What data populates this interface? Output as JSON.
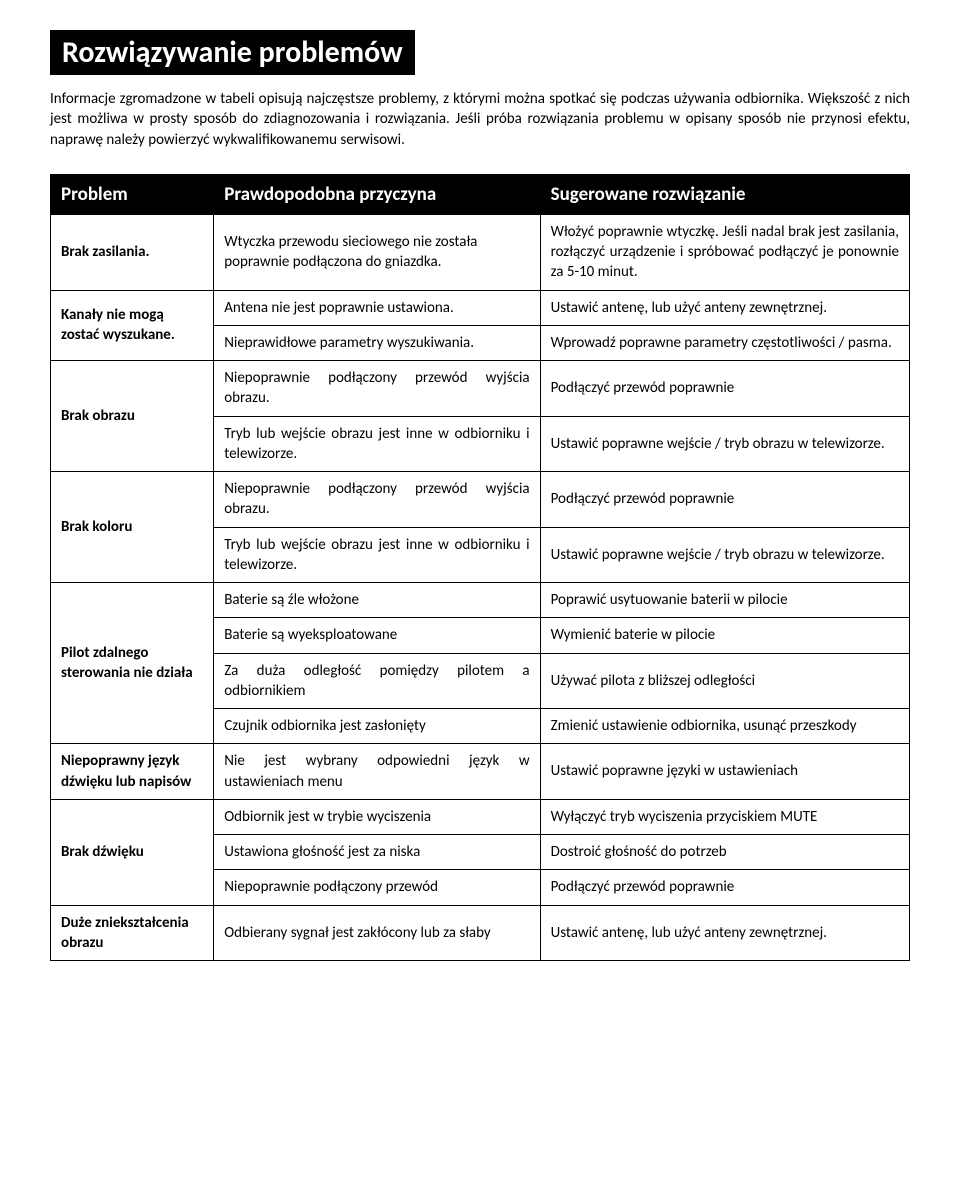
{
  "title": "Rozwiązywanie problemów",
  "intro": "Informacje zgromadzone w tabeli opisują najczęstsze problemy, z którymi można spotkać się podczas używania odbiornika. Większość z nich jest możliwa w prosty sposób do zdiagnozowania i rozwiązania. Jeśli próba rozwiązania problemu w opisany sposób nie przynosi efektu, naprawę należy powierzyć wykwalifikowanemu serwisowi.",
  "headers": {
    "problem": "Problem",
    "cause": "Prawdopodobna przyczyna",
    "solution": "Sugerowane rozwiązanie"
  },
  "rows": {
    "r1": {
      "problem": "Brak zasilania.",
      "cause": "Wtyczka przewodu sieciowego nie została poprawnie podłączona do gniazdka.",
      "solution": "Włożyć poprawnie wtyczkę. Jeśli nadal brak jest zasilania, rozłączyć urządzenie i spróbować podłączyć je ponownie za 5-10 minut."
    },
    "r2a": {
      "problem": "Kanały nie mogą zostać wyszukane.",
      "cause": "Antena nie jest poprawnie ustawiona.",
      "solution": "Ustawić antenę, lub użyć anteny zewnętrznej."
    },
    "r2b": {
      "cause": "Nieprawidłowe parametry wyszukiwania.",
      "solution": "Wprowadź poprawne parametry częstotliwości / pasma."
    },
    "r3a": {
      "problem": "Brak obrazu",
      "cause": "Niepoprawnie podłączony przewód wyjścia obrazu.",
      "solution": "Podłączyć przewód poprawnie"
    },
    "r3b": {
      "cause": "Tryb lub wejście obrazu jest inne w odbiorniku i telewizorze.",
      "solution": "Ustawić poprawne wejście / tryb obrazu  w telewizorze."
    },
    "r4a": {
      "problem": "Brak koloru",
      "cause": "Niepoprawnie podłączony przewód wyjścia obrazu.",
      "solution": "Podłączyć przewód poprawnie"
    },
    "r4b": {
      "cause": "Tryb lub wejście obrazu jest inne w odbiorniku i telewizorze.",
      "solution": "Ustawić poprawne wejście / tryb obrazu  w telewizorze."
    },
    "r5a": {
      "problem": "Pilot zdalnego sterowania nie działa",
      "cause": "Baterie są źle włożone",
      "solution": "Poprawić usytuowanie baterii w pilocie"
    },
    "r5b": {
      "cause": "Baterie są wyeksploatowane",
      "solution": "Wymienić baterie w pilocie"
    },
    "r5c": {
      "cause": "Za duża odległość pomiędzy pilotem a odbiornikiem",
      "solution": "Używać pilota z bliższej odległości"
    },
    "r5d": {
      "cause": "Czujnik odbiornika jest zasłonięty",
      "solution": "Zmienić ustawienie odbiornika, usunąć przeszkody"
    },
    "r6": {
      "problem": "Niepoprawny język dźwięku lub napisów",
      "cause": "Nie jest wybrany odpowiedni język w ustawieniach menu",
      "solution": "Ustawić poprawne języki w ustawieniach"
    },
    "r7a": {
      "problem": "Brak dźwięku",
      "cause": "Odbiornik jest w trybie wyciszenia",
      "solution": "Wyłączyć tryb wyciszenia przyciskiem MUTE"
    },
    "r7b": {
      "cause": "Ustawiona głośność jest za niska",
      "solution": "Dostroić głośność do potrzeb"
    },
    "r7c": {
      "cause": "Niepoprawnie podłączony przewód",
      "solution": "Podłączyć przewód poprawnie"
    },
    "r8": {
      "problem": "Duże zniekształcenia obrazu",
      "cause": "Odbierany sygnał jest zakłócony lub za słaby",
      "solution": "Ustawić antenę, lub użyć anteny zewnętrznej."
    }
  }
}
